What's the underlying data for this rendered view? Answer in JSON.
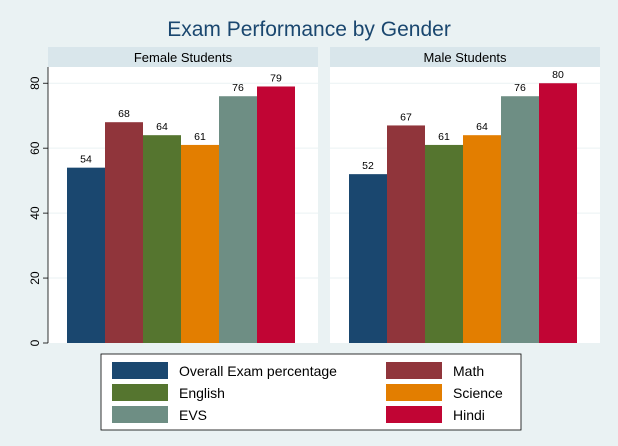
{
  "chart_data": {
    "type": "bar",
    "title": "Exam Performance by Gender",
    "ylim": [
      0,
      85
    ],
    "yticks": [
      0,
      20,
      40,
      60,
      80
    ],
    "grid": true,
    "legend_position": "bottom",
    "panels": [
      {
        "name": "Female Students",
        "values": [
          54,
          68,
          64,
          61,
          76,
          79
        ]
      },
      {
        "name": "Male Students",
        "values": [
          52,
          67,
          61,
          64,
          76,
          80
        ]
      }
    ],
    "series": [
      {
        "name": "Overall Exam percentage",
        "color": "#1a476f"
      },
      {
        "name": "Math",
        "color": "#90353b"
      },
      {
        "name": "English",
        "color": "#55752f"
      },
      {
        "name": "Science",
        "color": "#e37e00"
      },
      {
        "name": "EVS",
        "color": "#6e8e84"
      },
      {
        "name": "Hindi",
        "color": "#c10534"
      }
    ]
  },
  "style": {
    "page_bg": "#eaf2f3",
    "plot_bg": "#ffffff",
    "strip_bg": "#d9e6eb",
    "title_color": "#1a476f",
    "grid_color": "#eaf2f3",
    "text_color": "#000000"
  }
}
